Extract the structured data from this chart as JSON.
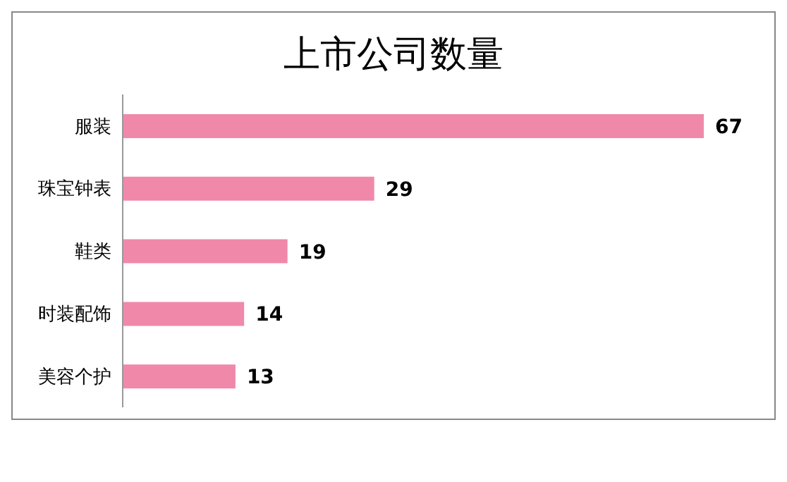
{
  "chart_data": {
    "type": "bar",
    "title": "上市公司数量",
    "orientation": "horizontal",
    "categories": [
      "服装",
      "珠宝钟表",
      "鞋类",
      "时装配饰",
      "美容个护"
    ],
    "values": [
      67,
      29,
      19,
      14,
      13
    ],
    "color": "#f088aa",
    "data_labels": true
  }
}
